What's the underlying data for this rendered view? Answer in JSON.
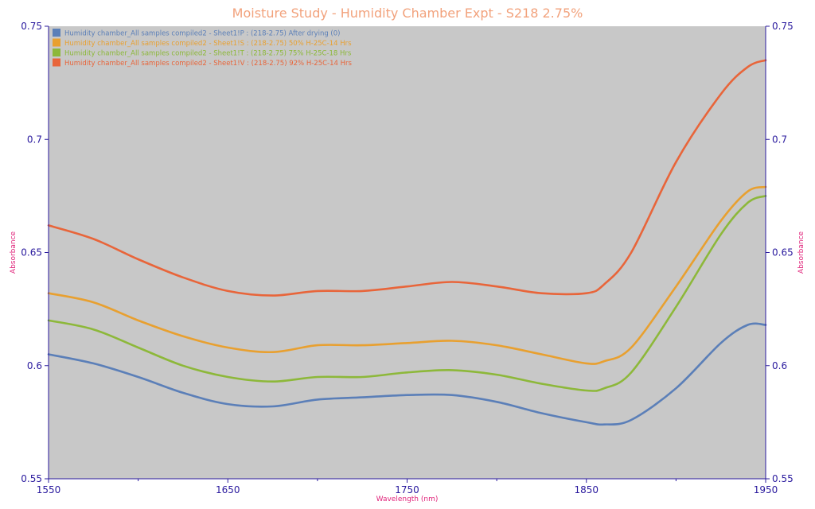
{
  "chart_data": {
    "type": "line",
    "title": "Moisture Study - Humidity Chamber Expt - S218 2.75%",
    "xlabel": "Wavelength (nm)",
    "ylabel_left": "Absorbance",
    "ylabel_right": "Absorbance",
    "xlim": [
      1550,
      1950
    ],
    "ylim": [
      0.55,
      0.75
    ],
    "x_ticks": [
      1550,
      1650,
      1750,
      1850,
      1950
    ],
    "x_tick_labels": [
      "1550",
      "1650",
      "1750",
      "1850",
      "1950"
    ],
    "y_ticks": [
      0.55,
      0.6,
      0.65,
      0.7,
      0.75
    ],
    "y_tick_labels": [
      "0.55",
      "0.6",
      "0.65",
      "0.7",
      "0.75"
    ],
    "grid": false,
    "legend_position": "top-left",
    "plot_background": "#c8c8c8",
    "tick_label_color": "#2a1a9e",
    "axis_title_color": "#e0237a",
    "title_color": "#f2a27c",
    "series": [
      {
        "name": "Humidity chamber_All samples compiled2 - Sheet1!P : (218-2.75) After drying (0)",
        "color": "#5b7fb8",
        "x": [
          1550,
          1575,
          1600,
          1625,
          1650,
          1675,
          1700,
          1725,
          1750,
          1775,
          1800,
          1825,
          1850,
          1860,
          1875,
          1900,
          1925,
          1940,
          1950
        ],
        "y": [
          0.605,
          0.601,
          0.595,
          0.588,
          0.583,
          0.582,
          0.585,
          0.586,
          0.587,
          0.587,
          0.584,
          0.579,
          0.575,
          0.574,
          0.576,
          0.59,
          0.61,
          0.618,
          0.618
        ]
      },
      {
        "name": "Humidity chamber_All samples compiled2 - Sheet1!S : (218-2.75) 50% H-25C-14 Hrs",
        "color": "#e8a030",
        "x": [
          1550,
          1575,
          1600,
          1625,
          1650,
          1675,
          1700,
          1725,
          1750,
          1775,
          1800,
          1825,
          1850,
          1860,
          1875,
          1900,
          1925,
          1940,
          1950
        ],
        "y": [
          0.632,
          0.628,
          0.62,
          0.613,
          0.608,
          0.606,
          0.609,
          0.609,
          0.61,
          0.611,
          0.609,
          0.605,
          0.601,
          0.602,
          0.608,
          0.635,
          0.664,
          0.677,
          0.679
        ]
      },
      {
        "name": "Humidity chamber_All samples compiled2 - Sheet1!T : (218-2.75) 75% H-25C-18 Hrs",
        "color": "#8db83a",
        "x": [
          1550,
          1575,
          1600,
          1625,
          1650,
          1675,
          1700,
          1725,
          1750,
          1775,
          1800,
          1825,
          1850,
          1860,
          1875,
          1900,
          1925,
          1940,
          1950
        ],
        "y": [
          0.62,
          0.616,
          0.608,
          0.6,
          0.595,
          0.593,
          0.595,
          0.595,
          0.597,
          0.598,
          0.596,
          0.592,
          0.589,
          0.59,
          0.597,
          0.626,
          0.658,
          0.672,
          0.675
        ]
      },
      {
        "name": "Humidity chamber_All samples compiled2 - Sheet1!V : (218-2.75) 92% H-25C-14 Hrs",
        "color": "#e8653a",
        "x": [
          1550,
          1575,
          1600,
          1625,
          1650,
          1675,
          1700,
          1725,
          1750,
          1775,
          1800,
          1825,
          1850,
          1860,
          1875,
          1900,
          1925,
          1940,
          1950
        ],
        "y": [
          0.662,
          0.656,
          0.647,
          0.639,
          0.633,
          0.631,
          0.633,
          0.633,
          0.635,
          0.637,
          0.635,
          0.632,
          0.632,
          0.636,
          0.65,
          0.69,
          0.72,
          0.732,
          0.735
        ]
      }
    ]
  }
}
